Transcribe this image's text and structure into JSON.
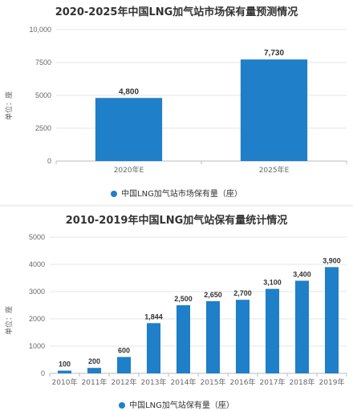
{
  "colors": {
    "bar": "#1f7fc8",
    "grid": "#e6e6e6",
    "axis": "#666666"
  },
  "chart_data": [
    {
      "type": "bar",
      "title": "2020-2025年中国LNG加气站市场保有量预测情况",
      "ylabel": "单位：座",
      "categories": [
        "2020年E",
        "2025年E"
      ],
      "series": [
        {
          "name": "中国LNG加气站市场保有量（座）",
          "values": [
            4800,
            7730
          ]
        }
      ],
      "data_labels": [
        "4,800",
        "7,730"
      ],
      "yticks": [
        "0",
        "2500",
        "5000",
        "7500",
        "10,000"
      ],
      "ylim": [
        0,
        10000
      ],
      "grid": true,
      "legend": "bottom"
    },
    {
      "type": "bar",
      "title": "2010-2019年中国LNG加气站保有量统计情况",
      "ylabel": "单位：座",
      "categories": [
        "2010年",
        "2011年",
        "2012年",
        "2013年",
        "2014年",
        "2015年",
        "2016年",
        "2017年",
        "2018年",
        "2019年"
      ],
      "series": [
        {
          "name": "中国LNG加气站保有量（座）",
          "values": [
            100,
            200,
            600,
            1844,
            2500,
            2650,
            2700,
            3100,
            3400,
            3900
          ]
        }
      ],
      "data_labels": [
        "100",
        "200",
        "600",
        "1,844",
        "2,500",
        "2,650",
        "2,700",
        "3,100",
        "3,400",
        "3,900"
      ],
      "yticks": [
        "0",
        "1000",
        "2000",
        "3000",
        "4000",
        "5000"
      ],
      "ylim": [
        0,
        5000
      ],
      "grid": true,
      "legend": "bottom"
    }
  ]
}
